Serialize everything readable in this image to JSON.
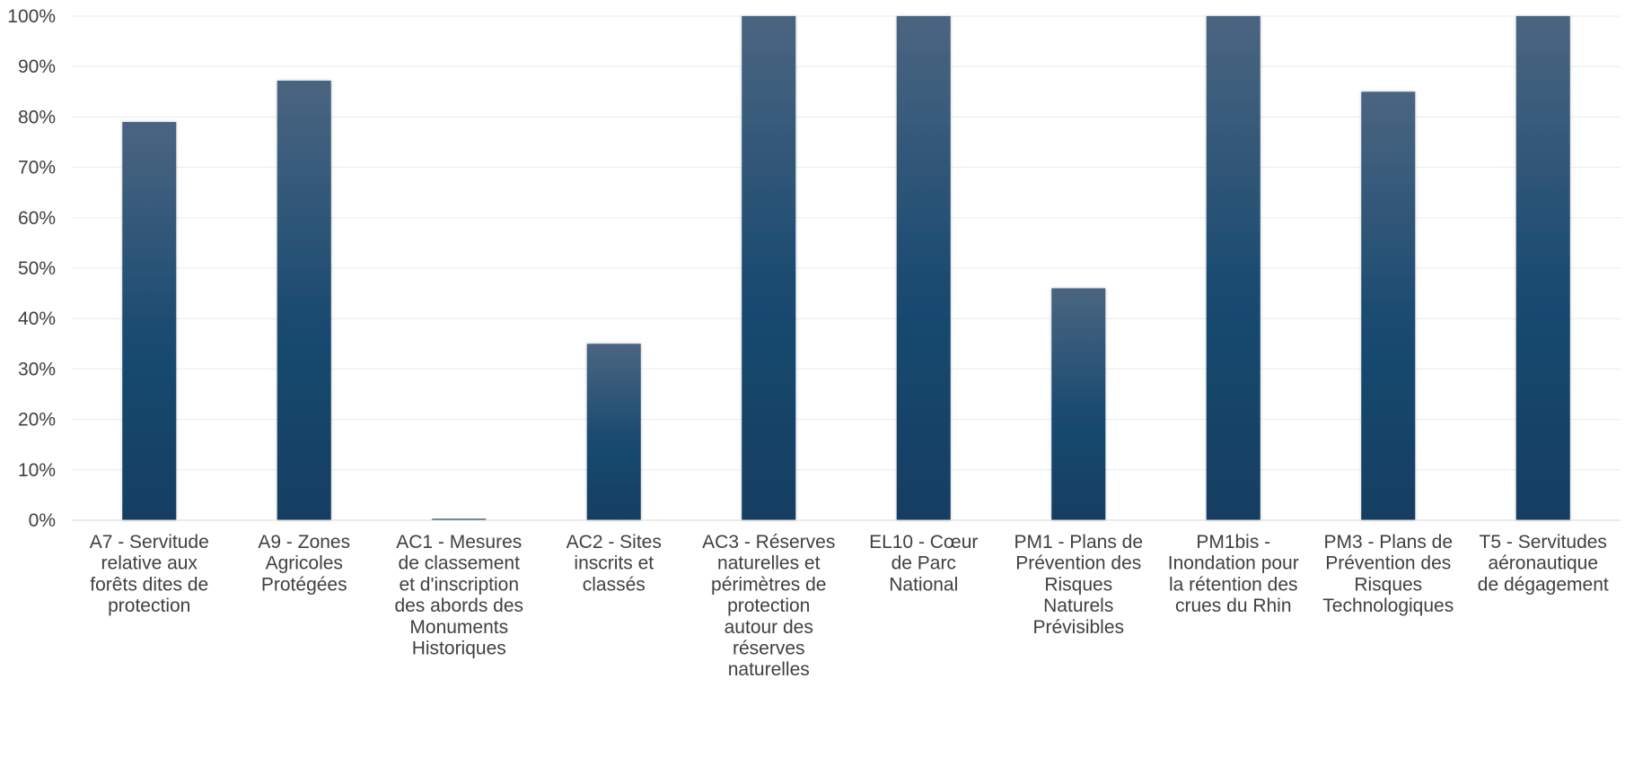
{
  "chart_data": {
    "type": "bar",
    "title": "",
    "xlabel": "",
    "ylabel": "",
    "ylim": [
      0,
      100
    ],
    "yticks": [
      0,
      10,
      20,
      30,
      40,
      50,
      60,
      70,
      80,
      90,
      100
    ],
    "ytick_labels": [
      "0%",
      "10%",
      "20%",
      "30%",
      "40%",
      "50%",
      "60%",
      "70%",
      "80%",
      "90%",
      "100%"
    ],
    "grid": true,
    "legend": "none",
    "bar_color_top": "#4a6581",
    "bar_color_bottom": "#123e62",
    "categories": [
      "A7 - Servitude relative aux forêts dites de protection",
      "A9 - Zones Agricoles Protégées",
      "AC1 - Mesures de classement et d'inscription des abords des Monuments Historiques",
      "AC2 - Sites inscrits et classés",
      "AC3 - Réserves naturelles et périmètres de protection autour des réserves naturelles",
      "EL10 - Cœur de Parc National",
      "PM1 - Plans de Prévention des Risques Naturels Prévisibles",
      "PM1bis - Inondation pour la rétention des crues du Rhin",
      "PM3 - Plans de Prévention des Risques Technologiques",
      "T5 - Servitudes aéronautique de dégagement"
    ],
    "category_label_lines": [
      [
        "A7 - Servitude",
        "relative aux",
        "forêts dites de",
        "protection"
      ],
      [
        "A9 - Zones",
        "Agricoles",
        "Protégées"
      ],
      [
        "AC1 - Mesures",
        "de classement",
        "et d'inscription",
        "des abords des",
        "Monuments",
        "Historiques"
      ],
      [
        "AC2 - Sites",
        "inscrits et",
        "classés"
      ],
      [
        "AC3 - Réserves",
        "naturelles et",
        "périmètres de",
        "protection",
        "autour des",
        "réserves",
        "naturelles"
      ],
      [
        "EL10 - Cœur",
        "de Parc",
        "National"
      ],
      [
        "PM1 - Plans de",
        "Prévention des",
        "Risques",
        "Naturels",
        "Prévisibles"
      ],
      [
        "PM1bis -",
        "Inondation pour",
        "la rétention des",
        "crues du Rhin"
      ],
      [
        "PM3 - Plans de",
        "Prévention des",
        "Risques",
        "Technologiques"
      ],
      [
        "T5 - Servitudes",
        "aéronautique",
        "de dégagement"
      ]
    ],
    "values": [
      79,
      87.2,
      0.3,
      35,
      100,
      100,
      46,
      100,
      85,
      100
    ]
  }
}
